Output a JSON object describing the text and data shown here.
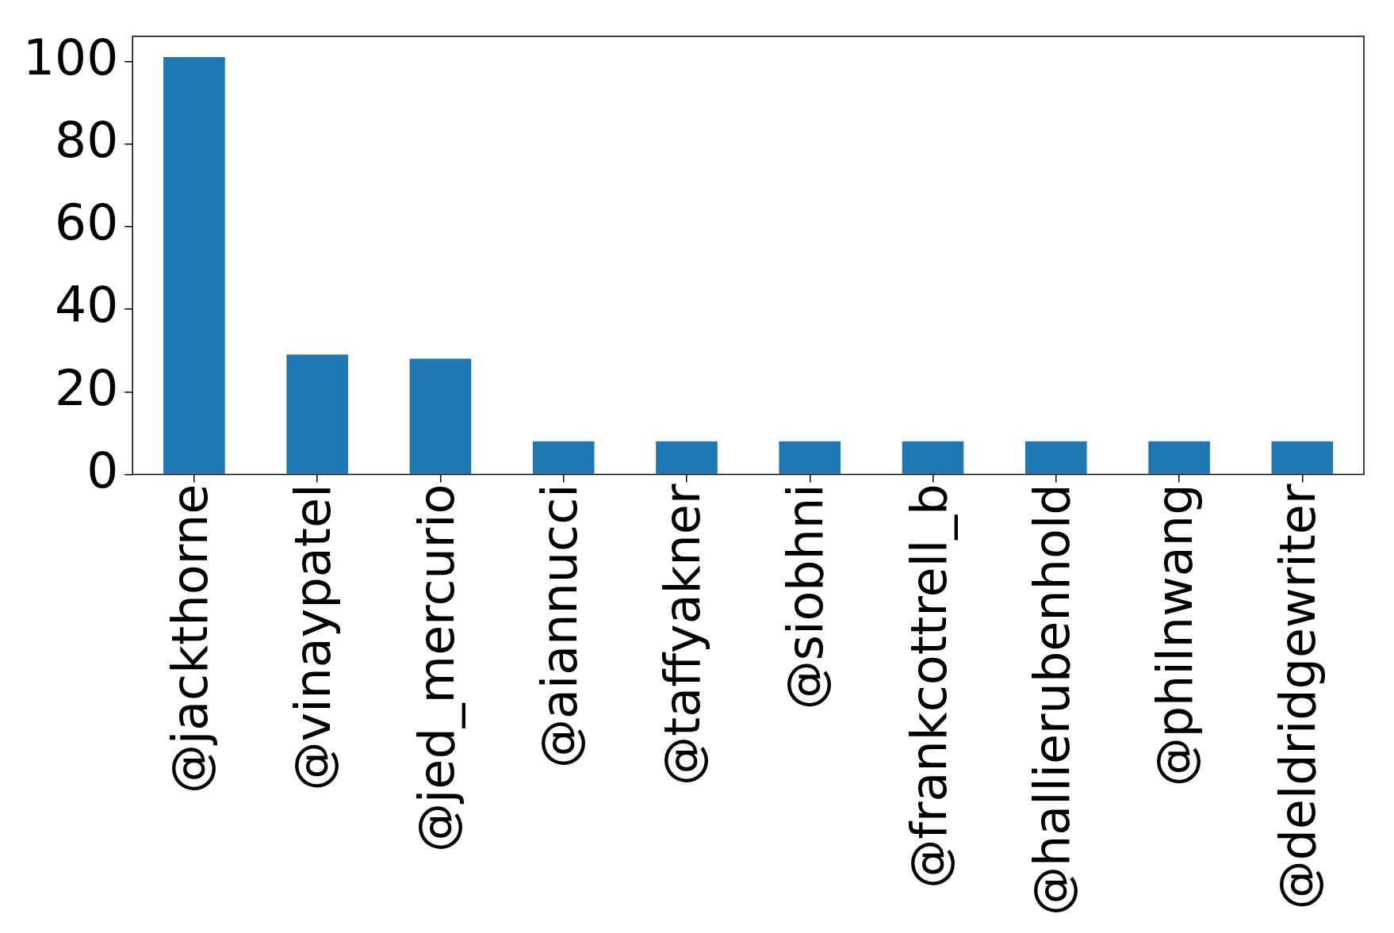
{
  "chart_data": {
    "type": "bar",
    "categories": [
      "@jackthorne",
      "@vinaypatel",
      "@jed_mercurio",
      "@aiannucci",
      "@taffyakner",
      "@siobhni",
      "@frankcottrell_b",
      "@hallierubenhold",
      "@philnwang",
      "@deldridgewriter"
    ],
    "values": [
      101,
      29,
      28,
      8,
      8,
      8,
      8,
      8,
      8,
      8
    ],
    "color": "#1f77b4",
    "ylim": [
      0,
      106.05
    ],
    "yticks": [
      0,
      20,
      40,
      60,
      80,
      100
    ]
  }
}
